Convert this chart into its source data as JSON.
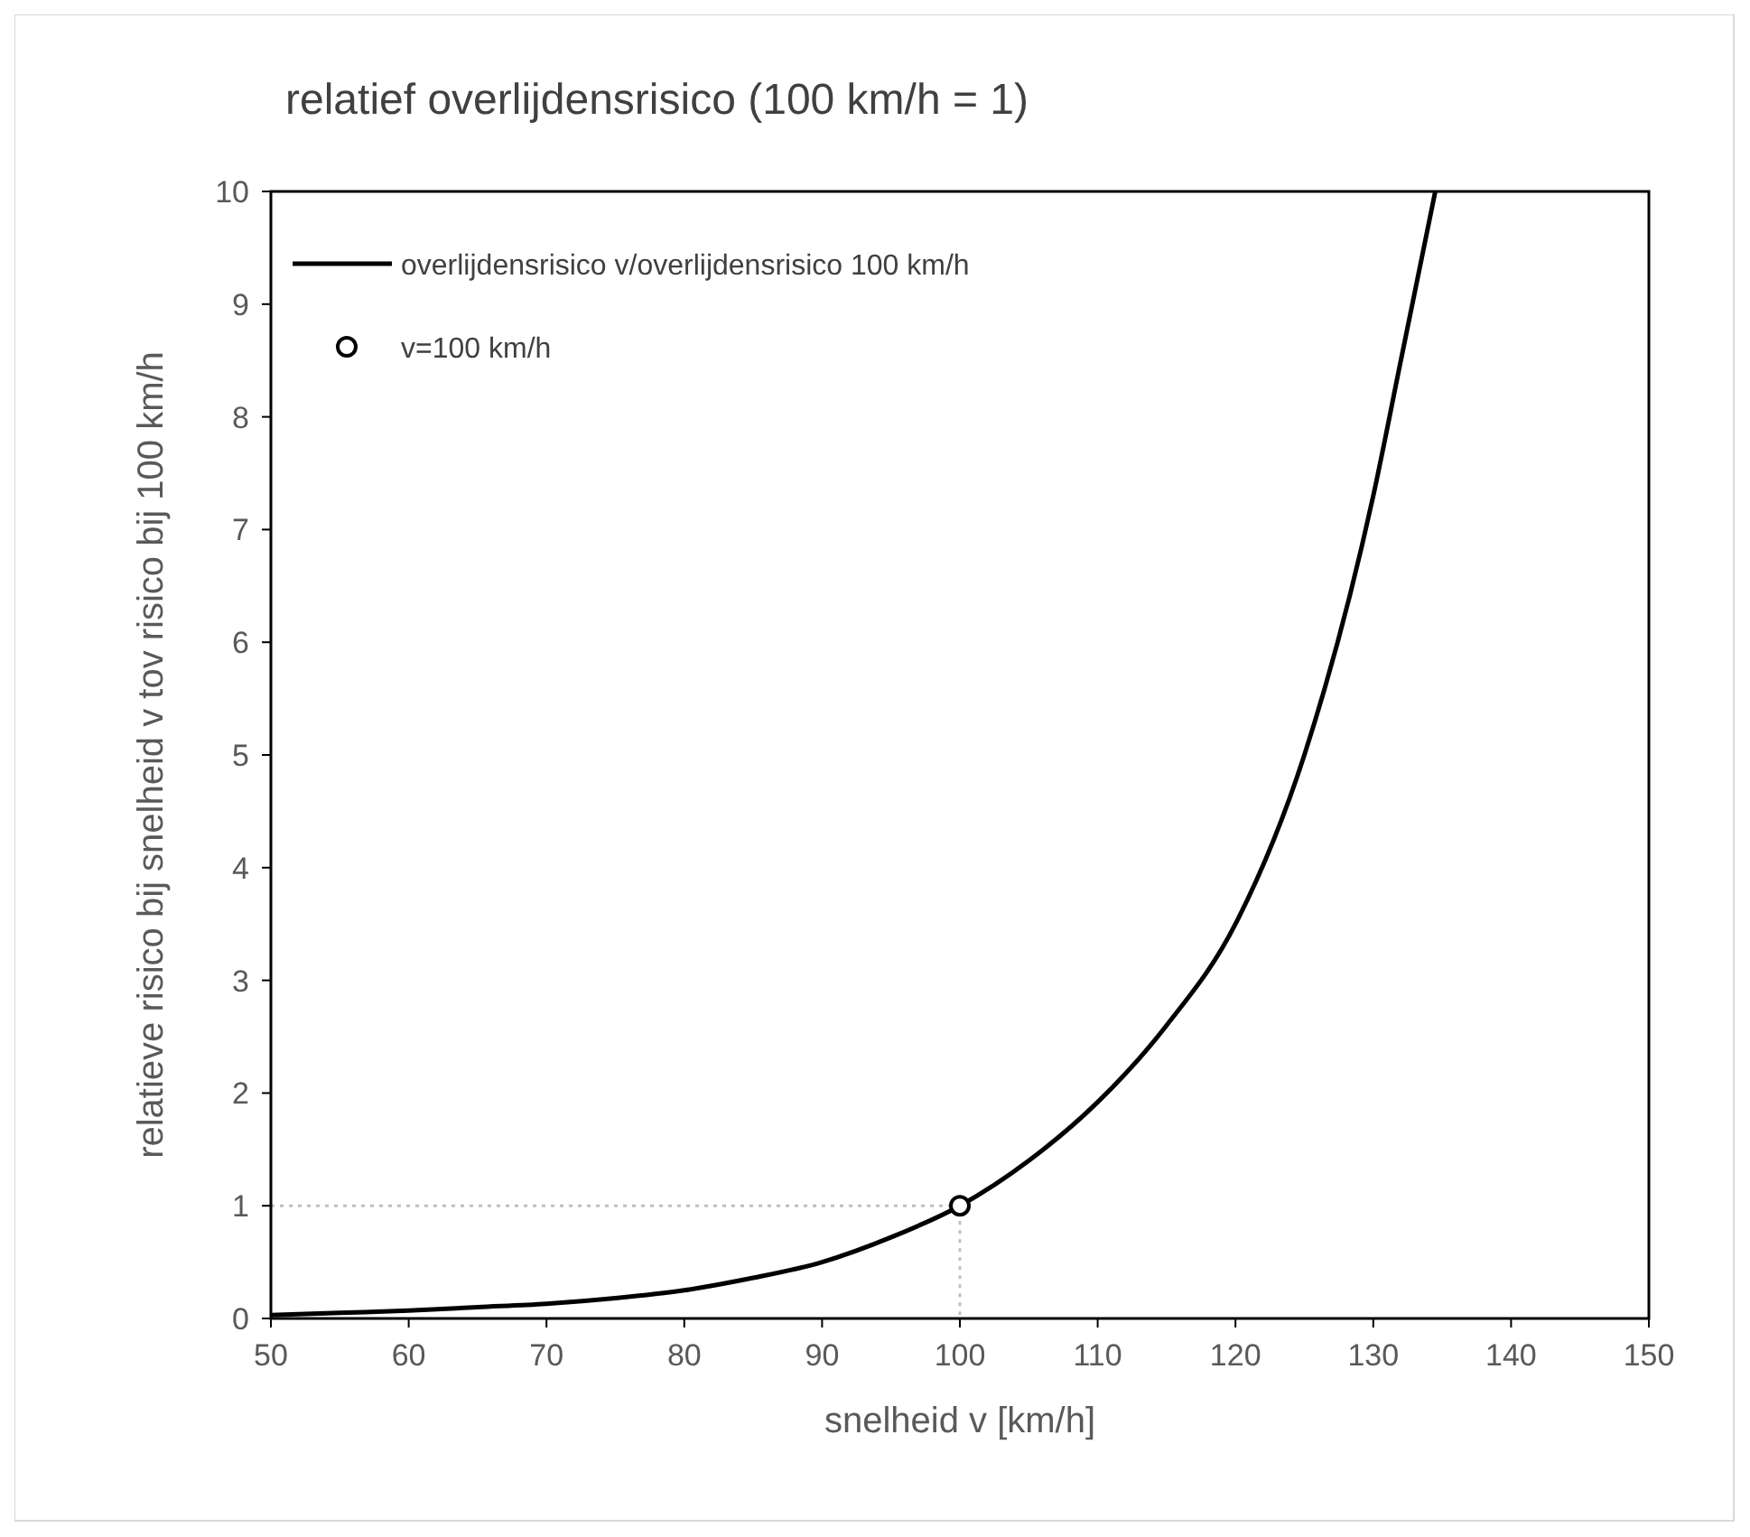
{
  "chart_data": {
    "type": "line",
    "title": "relatief overlijdensrisico (100 km/h = 1)",
    "xlabel": "snelheid v [km/h]",
    "ylabel": "relatieve risico bij snelheid v tov risico bij 100 km/h",
    "xlim": [
      50,
      150
    ],
    "xticks": [
      50,
      60,
      70,
      80,
      90,
      100,
      110,
      120,
      130,
      140,
      150
    ],
    "ylim": [
      0,
      10
    ],
    "yticks": [
      0,
      1,
      2,
      3,
      4,
      5,
      6,
      7,
      8,
      9,
      10
    ],
    "grid": false,
    "legend": "top left",
    "series": [
      {
        "name": "overlijdensrisico v/overlijdensrisico 100 km/h",
        "type": "line",
        "color": "#000000",
        "line_style": "solid",
        "marker": "none",
        "x": [
          50,
          55,
          60,
          65,
          70,
          75,
          80,
          85,
          90,
          95,
          100,
          105,
          110,
          115,
          120,
          125,
          130,
          132,
          134.5
        ],
        "values": [
          0.03,
          0.05,
          0.07,
          0.1,
          0.13,
          0.18,
          0.25,
          0.36,
          0.5,
          0.72,
          1.0,
          1.4,
          1.92,
          2.6,
          3.5,
          5.0,
          7.3,
          8.5,
          10
        ]
      },
      {
        "type": "line",
        "color": "#bfbfbf",
        "line_style": "dotted",
        "marker": "none",
        "x": [
          50,
          100,
          100
        ],
        "values": [
          1,
          1,
          0
        ]
      },
      {
        "name": "v=100 km/h",
        "type": "scatter",
        "color": "#000000",
        "marker": "circle",
        "x": [
          100
        ],
        "values": [
          1
        ]
      }
    ]
  }
}
